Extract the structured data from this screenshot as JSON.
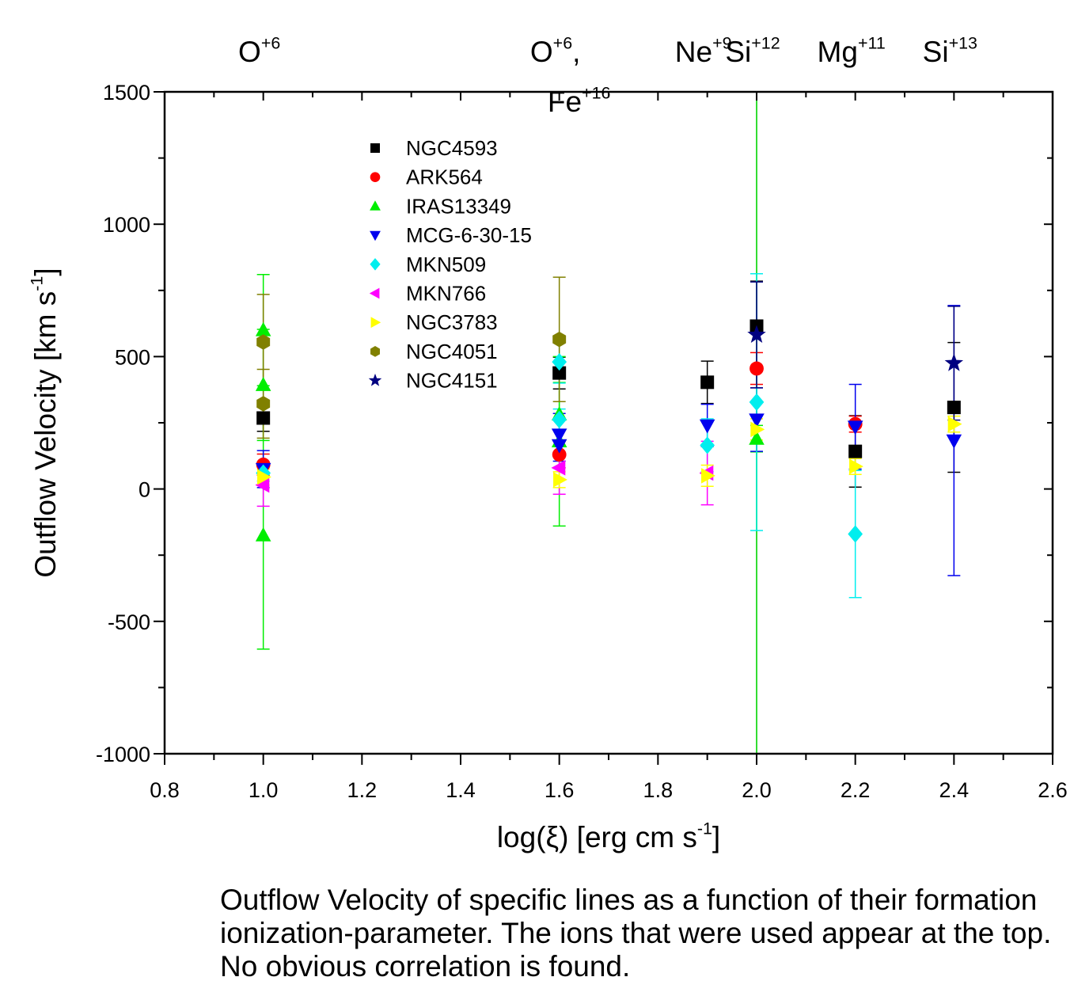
{
  "chart_data": {
    "type": "scatter",
    "title": "",
    "xlabel": "log(ξ) [erg cm s",
    "xlabel_sup": "-1",
    "xlabel_end": "]",
    "ylabel": "Outflow Velocity [km s",
    "ylabel_sup": "-1",
    "ylabel_end": "]",
    "xlim": [
      0.8,
      2.6
    ],
    "ylim": [
      -1000,
      1500
    ],
    "x_ticks": [
      "0.8",
      "1.0",
      "1.2",
      "1.4",
      "1.6",
      "1.8",
      "2.0",
      "2.2",
      "2.4",
      "2.6"
    ],
    "y_ticks": [
      "1500",
      "1000",
      "500",
      "0",
      "-500",
      "-1000"
    ],
    "legend_position": "top-left inside",
    "ion_labels": [
      {
        "x": 1.0,
        "base": "O",
        "sup": "+6"
      },
      {
        "x": 1.6,
        "base": "O",
        "sup": "+6",
        "suffix": ",",
        "line2_base": "Fe",
        "line2_sup": "+16"
      },
      {
        "x": 1.9,
        "base": "Ne",
        "sup": "+9"
      },
      {
        "x": 2.0,
        "base": "Si",
        "sup": "+12"
      },
      {
        "x": 2.2,
        "base": "Mg",
        "sup": "+11"
      },
      {
        "x": 2.4,
        "base": "Si",
        "sup": "+13"
      }
    ],
    "vertical_line": {
      "x": 2.0,
      "color": "#33dd33"
    },
    "series": [
      {
        "name": "NGC4593",
        "marker": "square",
        "color": "#000000",
        "points": [
          [
            1.0,
            268,
            50
          ],
          [
            1.6,
            438,
            60
          ],
          [
            1.9,
            403,
            80
          ],
          [
            2.0,
            615,
            170
          ],
          [
            2.2,
            142,
            135
          ],
          [
            2.4,
            308,
            245
          ]
        ]
      },
      {
        "name": "ARK564",
        "marker": "circle",
        "color": "#ff0000",
        "points": [
          [
            1.0,
            92,
            40
          ],
          [
            1.6,
            130,
            50
          ],
          [
            2.0,
            455,
            60
          ],
          [
            2.2,
            245,
            30
          ]
        ]
      },
      {
        "name": "IRAS13349",
        "marker": "triangle-up",
        "color": "#00ee00",
        "points": [
          [
            1.0,
            600,
            210
          ],
          [
            1.0,
            393,
            210
          ],
          [
            1.0,
            -175,
            430
          ],
          [
            1.6,
            282,
            120
          ],
          [
            1.6,
            180,
            320
          ],
          [
            2.0,
            190,
            50
          ]
        ]
      },
      {
        "name": "MCG-6-30-15",
        "marker": "triangle-down",
        "color": "#0000ee",
        "points": [
          [
            1.0,
            75,
            70
          ],
          [
            1.6,
            205,
            80
          ],
          [
            1.6,
            165,
            60
          ],
          [
            1.9,
            240,
            80
          ],
          [
            2.0,
            262,
            120
          ],
          [
            2.2,
            235,
            160
          ],
          [
            2.4,
            183,
            510
          ]
        ]
      },
      {
        "name": "MKN509",
        "marker": "diamond",
        "color": "#00eeee",
        "points": [
          [
            1.0,
            60,
            30
          ],
          [
            1.6,
            480,
            80
          ],
          [
            1.6,
            262,
            40
          ],
          [
            1.9,
            165,
            100
          ],
          [
            2.0,
            328,
            485
          ],
          [
            2.2,
            -170,
            240
          ]
        ]
      },
      {
        "name": "MKN766",
        "marker": "triangle-left",
        "color": "#ff00ff",
        "points": [
          [
            1.0,
            15,
            80
          ],
          [
            1.6,
            80,
            100
          ],
          [
            1.9,
            60,
            120
          ]
        ]
      },
      {
        "name": "NGC3783",
        "marker": "triangle-right",
        "color": "#ffff00",
        "points": [
          [
            1.0,
            45,
            30
          ],
          [
            1.6,
            35,
            30
          ],
          [
            1.9,
            50,
            40
          ],
          [
            2.0,
            225,
            40
          ],
          [
            2.2,
            85,
            30
          ],
          [
            2.4,
            245,
            30
          ]
        ]
      },
      {
        "name": "NGC4051",
        "marker": "hexagon",
        "color": "#808000",
        "points": [
          [
            1.0,
            555,
            180
          ],
          [
            1.0,
            322,
            130
          ],
          [
            1.6,
            565,
            235
          ]
        ]
      },
      {
        "name": "NGC4151",
        "marker": "star",
        "color": "#000080",
        "points": [
          [
            2.0,
            582,
            200
          ],
          [
            2.4,
            475,
            215
          ]
        ]
      }
    ]
  },
  "caption": "Outflow Velocity of specific lines as a function of their formation ionization-parameter. The ions that were used appear at the top. No obvious correlation is found."
}
